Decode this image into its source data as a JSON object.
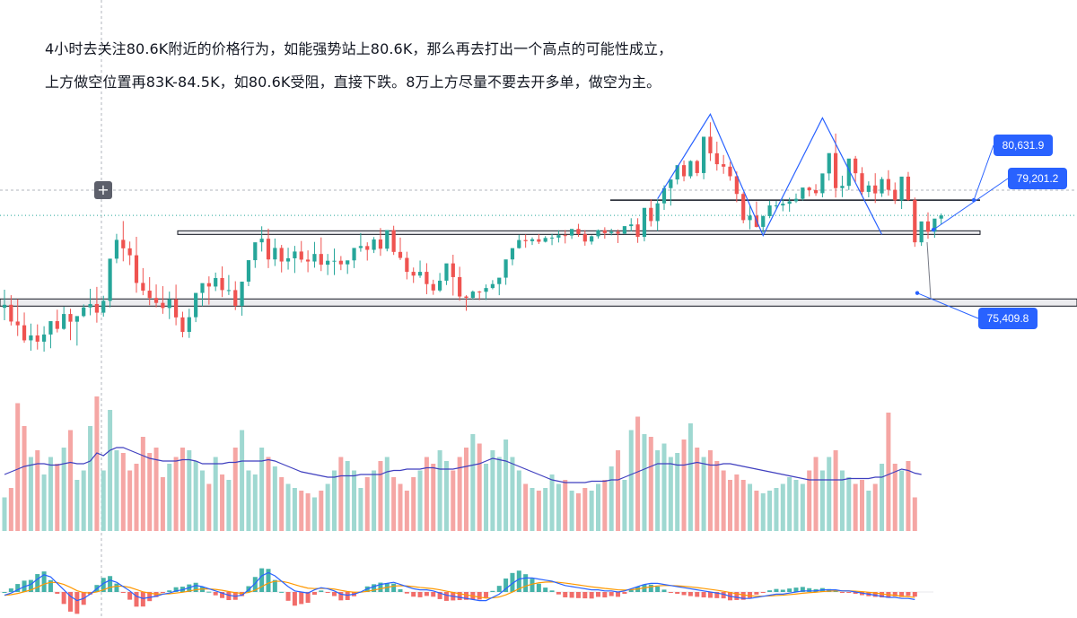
{
  "annotation": {
    "line1": "4小时去关注80.6K附近的价格行为，如能强势站上80.6K，那么再去打出一个高点的可能性成立，",
    "line2": "上方做空位置再83K-84.5K，如80.6K受阻，直接下跌。8万上方尽量不要去开多单，做空为主。"
  },
  "colors": {
    "up": "#26a69a",
    "down": "#ef5350",
    "up_volume": "#9fd8d1",
    "down_volume": "#f5a6a4",
    "volume_ma": "#3f3fbf",
    "macd_line": "#2962ff",
    "signal_line": "#ff9800",
    "label_bg": "#2962ff",
    "zigzag": "#2962ff"
  },
  "toolbar": {
    "add_icon": "plus-icon"
  },
  "chart_data": {
    "type": "candlestick",
    "title": "",
    "xlabel": "",
    "ylabel": "",
    "ylim": [
      72200,
      86500
    ],
    "grid": false,
    "legend": "none",
    "price_labels": [
      {
        "id": "resistance",
        "value": 80631.9,
        "text": "80,631.9"
      },
      {
        "id": "current",
        "value": 79201.2,
        "text": "79,201.2"
      },
      {
        "id": "support",
        "value": 75409.8,
        "text": "75,409.8"
      }
    ],
    "horizontal_levels": [
      {
        "name": "resistance_line",
        "value": 80631.9
      },
      {
        "name": "upper_zone",
        "low": 78850,
        "high": 79000
      },
      {
        "name": "lower_zone",
        "low": 75080,
        "high": 75380
      }
    ],
    "zigzag": [
      [
        99,
        80700
      ],
      [
        107,
        85200
      ],
      [
        115,
        78750
      ],
      [
        124,
        85000
      ],
      [
        133,
        78800
      ]
    ],
    "drop_marker": {
      "x": 140,
      "from": 78400,
      "to": 75409.8
    },
    "candles": [
      [
        74910,
        75870,
        75070,
        74250
      ],
      [
        75070,
        75580,
        74180,
        73970
      ],
      [
        74180,
        75370,
        73980,
        73410
      ],
      [
        73980,
        74660,
        73180,
        73050
      ],
      [
        73180,
        74070,
        73440,
        72630
      ],
      [
        73440,
        74030,
        73110,
        72690
      ],
      [
        73110,
        73930,
        73490,
        72580
      ],
      [
        73490,
        74020,
        74200,
        72760
      ],
      [
        74200,
        74810,
        73790,
        73600
      ],
      [
        73790,
        74970,
        74580,
        73740
      ],
      [
        74580,
        74860,
        74170,
        73190
      ],
      [
        74170,
        74320,
        74470,
        72900
      ],
      [
        74470,
        75090,
        74930,
        74410
      ],
      [
        74930,
        75920,
        75110,
        74510
      ],
      [
        75110,
        76020,
        74650,
        74120
      ],
      [
        74650,
        75550,
        75280,
        74440
      ],
      [
        75280,
        76200,
        77520,
        74930
      ],
      [
        77520,
        78840,
        78520,
        77280
      ],
      [
        78520,
        79520,
        78070,
        77380
      ],
      [
        78070,
        78430,
        77700,
        77180
      ],
      [
        77700,
        78680,
        76230,
        75710
      ],
      [
        76230,
        77020,
        75820,
        75580
      ],
      [
        75820,
        76540,
        75430,
        75050
      ],
      [
        75430,
        76150,
        75170,
        74930
      ],
      [
        75170,
        76060,
        74900,
        74590
      ],
      [
        74900,
        75770,
        75360,
        74310
      ],
      [
        75360,
        76140,
        74400,
        73980
      ],
      [
        74400,
        74700,
        73630,
        73340
      ],
      [
        73630,
        74860,
        74410,
        73310
      ],
      [
        74410,
        75550,
        75700,
        74150
      ],
      [
        75700,
        76010,
        76220,
        75000
      ],
      [
        76220,
        76580,
        76040,
        75080
      ],
      [
        76040,
        76780,
        76490,
        75800
      ],
      [
        76490,
        77110,
        75850,
        75480
      ],
      [
        75850,
        76650,
        75850,
        75590
      ],
      [
        75850,
        76320,
        75010,
        74790
      ],
      [
        75010,
        75700,
        76300,
        74490
      ],
      [
        76300,
        77050,
        77440,
        76060
      ],
      [
        77440,
        78070,
        78390,
        77030
      ],
      [
        78390,
        79240,
        78580,
        77900
      ],
      [
        78580,
        79120,
        77480,
        77020
      ],
      [
        77480,
        78590,
        78090,
        77130
      ],
      [
        78090,
        78250,
        77370,
        76790
      ],
      [
        77370,
        78100,
        77540,
        76940
      ],
      [
        77540,
        78200,
        77900,
        76760
      ],
      [
        77900,
        78460,
        77470,
        77320
      ],
      [
        77470,
        77960,
        77370,
        76800
      ],
      [
        77370,
        78410,
        77770,
        77040
      ],
      [
        77770,
        78650,
        77200,
        76860
      ],
      [
        77200,
        77770,
        77410,
        76650
      ],
      [
        77410,
        78060,
        77410,
        76650
      ],
      [
        77410,
        77660,
        77220,
        76910
      ],
      [
        77220,
        77410,
        77430,
        76710
      ],
      [
        77430,
        78030,
        78090,
        77020
      ],
      [
        78090,
        78880,
        78190,
        77890
      ],
      [
        78190,
        78390,
        77990,
        77420
      ],
      [
        77990,
        78670,
        78540,
        77820
      ],
      [
        78540,
        79150,
        78050,
        77670
      ],
      [
        78050,
        78820,
        79040,
        77910
      ],
      [
        79040,
        79270,
        77880,
        77720
      ],
      [
        77880,
        78640,
        77560,
        77450
      ],
      [
        77560,
        77890,
        76820,
        76420
      ],
      [
        76820,
        77050,
        76620,
        76230
      ],
      [
        76620,
        77420,
        76820,
        76500
      ],
      [
        76820,
        77280,
        76170,
        75630
      ],
      [
        76170,
        76400,
        75830,
        75600
      ],
      [
        75830,
        76760,
        76350,
        75750
      ],
      [
        76350,
        77020,
        77270,
        76120
      ],
      [
        77270,
        77730,
        76540,
        75560
      ],
      [
        76540,
        77090,
        75510,
        75290
      ],
      [
        75510,
        75580,
        75440,
        74750
      ],
      [
        75440,
        75830,
        75770,
        75340
      ],
      [
        75770,
        75810,
        75760,
        75320
      ],
      [
        75760,
        76150,
        75960,
        75330
      ],
      [
        75960,
        76380,
        76170,
        75890
      ],
      [
        76170,
        76370,
        76510,
        75580
      ],
      [
        76510,
        77040,
        77480,
        76130
      ],
      [
        77480,
        77960,
        78080,
        77170
      ],
      [
        78080,
        78790,
        78510,
        78050
      ],
      [
        78510,
        78810,
        78450,
        78100
      ],
      [
        78450,
        78650,
        78550,
        78250
      ],
      [
        78550,
        78830,
        78420,
        78300
      ],
      [
        78420,
        78720,
        78620,
        78380
      ],
      [
        78620,
        78840,
        78640,
        78240
      ],
      [
        78640,
        79030,
        78770,
        78380
      ],
      [
        78770,
        79040,
        78750,
        78330
      ],
      [
        78750,
        78940,
        79100,
        78570
      ],
      [
        79100,
        79370,
        78830,
        78680
      ],
      [
        78830,
        79030,
        78430,
        78210
      ],
      [
        78430,
        78760,
        78710,
        78270
      ],
      [
        78710,
        79070,
        79030,
        78590
      ],
      [
        79030,
        79190,
        78880,
        78580
      ],
      [
        78880,
        79110,
        78950,
        78760
      ],
      [
        78950,
        79070,
        78850,
        78350
      ],
      [
        78850,
        79020,
        79250,
        78820
      ],
      [
        79250,
        79670,
        79340,
        78970
      ],
      [
        79340,
        79670,
        78680,
        78360
      ],
      [
        78680,
        79210,
        80220,
        78440
      ],
      [
        80220,
        80680,
        79520,
        79230
      ],
      [
        79520,
        80670,
        80460,
        79000
      ],
      [
        80460,
        81420,
        81270,
        80110
      ],
      [
        81270,
        81650,
        81730,
        80340
      ],
      [
        81730,
        81980,
        82490,
        81470
      ],
      [
        82490,
        82740,
        81900,
        81630
      ],
      [
        81900,
        82750,
        82710,
        81780
      ],
      [
        82710,
        82770,
        82070,
        81910
      ],
      [
        82070,
        82940,
        84000,
        81740
      ],
      [
        84000,
        84770,
        83120,
        82710
      ],
      [
        83120,
        83740,
        82540,
        82200
      ],
      [
        82540,
        83030,
        82410,
        82030
      ],
      [
        82410,
        82660,
        81900,
        81660
      ],
      [
        81900,
        82160,
        80960,
        80520
      ],
      [
        80960,
        81050,
        79570,
        79400
      ],
      [
        79570,
        80350,
        79810,
        79080
      ],
      [
        79810,
        80560,
        79210,
        79180
      ],
      [
        79210,
        79820,
        79780,
        78900
      ],
      [
        79780,
        80610,
        80350,
        79670
      ],
      [
        80350,
        80590,
        80350,
        80150
      ],
      [
        80350,
        80700,
        80440,
        80040
      ],
      [
        80440,
        80760,
        80570,
        80010
      ],
      [
        80570,
        80980,
        80700,
        80480
      ],
      [
        80700,
        81230,
        81300,
        80610
      ],
      [
        81300,
        81350,
        81160,
        80830
      ],
      [
        81160,
        81480,
        81000,
        80860
      ],
      [
        81000,
        81560,
        82050,
        80780
      ],
      [
        82050,
        82830,
        83130,
        81670
      ],
      [
        83130,
        84170,
        81270,
        80770
      ],
      [
        81270,
        81930,
        81390,
        80790
      ],
      [
        81390,
        82170,
        82840,
        81170
      ],
      [
        82840,
        82980,
        82060,
        81600
      ],
      [
        82060,
        82380,
        81070,
        80900
      ],
      [
        81070,
        81630,
        81410,
        80780
      ],
      [
        81410,
        82060,
        80990,
        80480
      ],
      [
        80990,
        81860,
        81750,
        80800
      ],
      [
        81750,
        82220,
        81180,
        80870
      ],
      [
        81180,
        81570,
        80620,
        80430
      ],
      [
        80620,
        81480,
        81880,
        80160
      ],
      [
        81880,
        82130,
        80640,
        80580
      ],
      [
        80640,
        80770,
        78390,
        78150
      ],
      [
        78390,
        78800,
        79500,
        78200
      ],
      [
        79500,
        79980,
        78950,
        78580
      ],
      [
        78950,
        79620,
        79650,
        78630
      ],
      [
        79650,
        79920,
        79820,
        79350
      ]
    ],
    "volume_ma": [
      0.42,
      0.44,
      0.46,
      0.48,
      0.49,
      0.5,
      0.5,
      0.49,
      0.49,
      0.5,
      0.51,
      0.5,
      0.5,
      0.52,
      0.58,
      0.56,
      0.6,
      0.62,
      0.62,
      0.6,
      0.58,
      0.56,
      0.54,
      0.53,
      0.52,
      0.52,
      0.52,
      0.53,
      0.53,
      0.52,
      0.5,
      0.5,
      0.5,
      0.5,
      0.51,
      0.51,
      0.52,
      0.52,
      0.52,
      0.52,
      0.53,
      0.52,
      0.5,
      0.48,
      0.46,
      0.44,
      0.43,
      0.42,
      0.41,
      0.4,
      0.4,
      0.41,
      0.41,
      0.41,
      0.42,
      0.42,
      0.42,
      0.42,
      0.44,
      0.45,
      0.45,
      0.46,
      0.46,
      0.46,
      0.47,
      0.47,
      0.46,
      0.46,
      0.46,
      0.47,
      0.48,
      0.49,
      0.5,
      0.52,
      0.54,
      0.53,
      0.52,
      0.5,
      0.48,
      0.46,
      0.44,
      0.42,
      0.4,
      0.38,
      0.37,
      0.36,
      0.36,
      0.36,
      0.36,
      0.37,
      0.37,
      0.37,
      0.38,
      0.38,
      0.4,
      0.42,
      0.44,
      0.46,
      0.48,
      0.5,
      0.5,
      0.5,
      0.49,
      0.49,
      0.5,
      0.51,
      0.5,
      0.49,
      0.49,
      0.5,
      0.5,
      0.49,
      0.48,
      0.47,
      0.46,
      0.45,
      0.44,
      0.43,
      0.42,
      0.41,
      0.4,
      0.39,
      0.38,
      0.38,
      0.38,
      0.38,
      0.38,
      0.38,
      0.39,
      0.39,
      0.39,
      0.39,
      0.4,
      0.4,
      0.42,
      0.44,
      0.46,
      0.45,
      0.43,
      0.42
    ],
    "volume": [
      0.25,
      0.32,
      0.95,
      0.78,
      0.55,
      0.6,
      0.42,
      0.55,
      0.5,
      0.62,
      0.75,
      0.38,
      0.45,
      0.78,
      1.0,
      0.45,
      0.9,
      0.6,
      0.58,
      0.45,
      0.5,
      0.7,
      0.58,
      0.62,
      0.4,
      0.5,
      0.55,
      0.62,
      0.6,
      0.52,
      0.45,
      0.35,
      0.55,
      0.42,
      0.38,
      0.62,
      0.75,
      0.45,
      0.42,
      0.62,
      0.55,
      0.48,
      0.4,
      0.35,
      0.32,
      0.3,
      0.28,
      0.25,
      0.3,
      0.35,
      0.45,
      0.55,
      0.52,
      0.45,
      0.32,
      0.4,
      0.45,
      0.52,
      0.55,
      0.4,
      0.35,
      0.3,
      0.4,
      0.45,
      0.55,
      0.5,
      0.6,
      0.52,
      0.45,
      0.55,
      0.62,
      0.72,
      0.65,
      0.5,
      0.6,
      0.55,
      0.68,
      0.55,
      0.45,
      0.35,
      0.32,
      0.3,
      0.32,
      0.42,
      0.35,
      0.38,
      0.3,
      0.28,
      0.32,
      0.3,
      0.35,
      0.38,
      0.48,
      0.6,
      0.38,
      0.75,
      0.85,
      0.72,
      0.7,
      0.6,
      0.65,
      0.55,
      0.58,
      0.68,
      0.8,
      0.62,
      0.55,
      0.6,
      0.52,
      0.45,
      0.38,
      0.42,
      0.38,
      0.35,
      0.3,
      0.28,
      0.3,
      0.32,
      0.35,
      0.4,
      0.38,
      0.35,
      0.45,
      0.55,
      0.45,
      0.55,
      0.6,
      0.45,
      0.4,
      0.35,
      0.38,
      0.3,
      0.35,
      0.5,
      0.88,
      0.5,
      0.45,
      0.52,
      0.25
    ],
    "macd": [
      -0.3,
      -0.1,
      0.2,
      0.5,
      0.7,
      1.2,
      1.6,
      1.4,
      0.8,
      0.2,
      -0.4,
      -0.8,
      -0.6,
      -0.2,
      0.3,
      0.8,
      1.1,
      0.9,
      0.5,
      0.1,
      -0.4,
      -0.6,
      -0.5,
      -0.4,
      -0.2,
      -0.1,
      0.1,
      0.2,
      0.4,
      0.6,
      0.5,
      0.3,
      0.1,
      -0.1,
      -0.3,
      -0.4,
      -0.3,
      0.2,
      0.8,
      1.5,
      1.8,
      1.5,
      1.0,
      0.5,
      0.1,
      0.0,
      -0.1,
      0.2,
      0.4,
      0.3,
      0.1,
      -0.2,
      -0.3,
      -0.2,
      0.0,
      0.3,
      0.5,
      0.7,
      0.8,
      0.9,
      0.7,
      0.5,
      0.3,
      0.2,
      0.2,
      0.1,
      -0.1,
      -0.3,
      -0.4,
      -0.5,
      -0.6,
      -0.7,
      -0.8,
      -0.8,
      -0.5,
      -0.2,
      0.3,
      0.8,
      1.2,
      1.3,
      1.3,
      1.2,
      1.1,
      1.0,
      0.8,
      0.6,
      0.5,
      0.4,
      0.3,
      0.2,
      0.2,
      0.1,
      0.1,
      0.0,
      0.1,
      0.3,
      0.5,
      0.7,
      0.8,
      0.8,
      0.7,
      0.6,
      0.5,
      0.4,
      0.3,
      0.2,
      0.1,
      0.0,
      -0.1,
      -0.2,
      -0.4,
      -0.5,
      -0.6,
      -0.6,
      -0.5,
      -0.4,
      -0.3,
      -0.2,
      -0.2,
      -0.1,
      0.0,
      0.1,
      0.1,
      0.1,
      0.2,
      0.2,
      0.2,
      0.1,
      0.1,
      0.0,
      -0.1,
      -0.2,
      -0.3,
      -0.4,
      -0.5,
      -0.5,
      -0.6,
      -0.6,
      -0.7
    ]
  }
}
